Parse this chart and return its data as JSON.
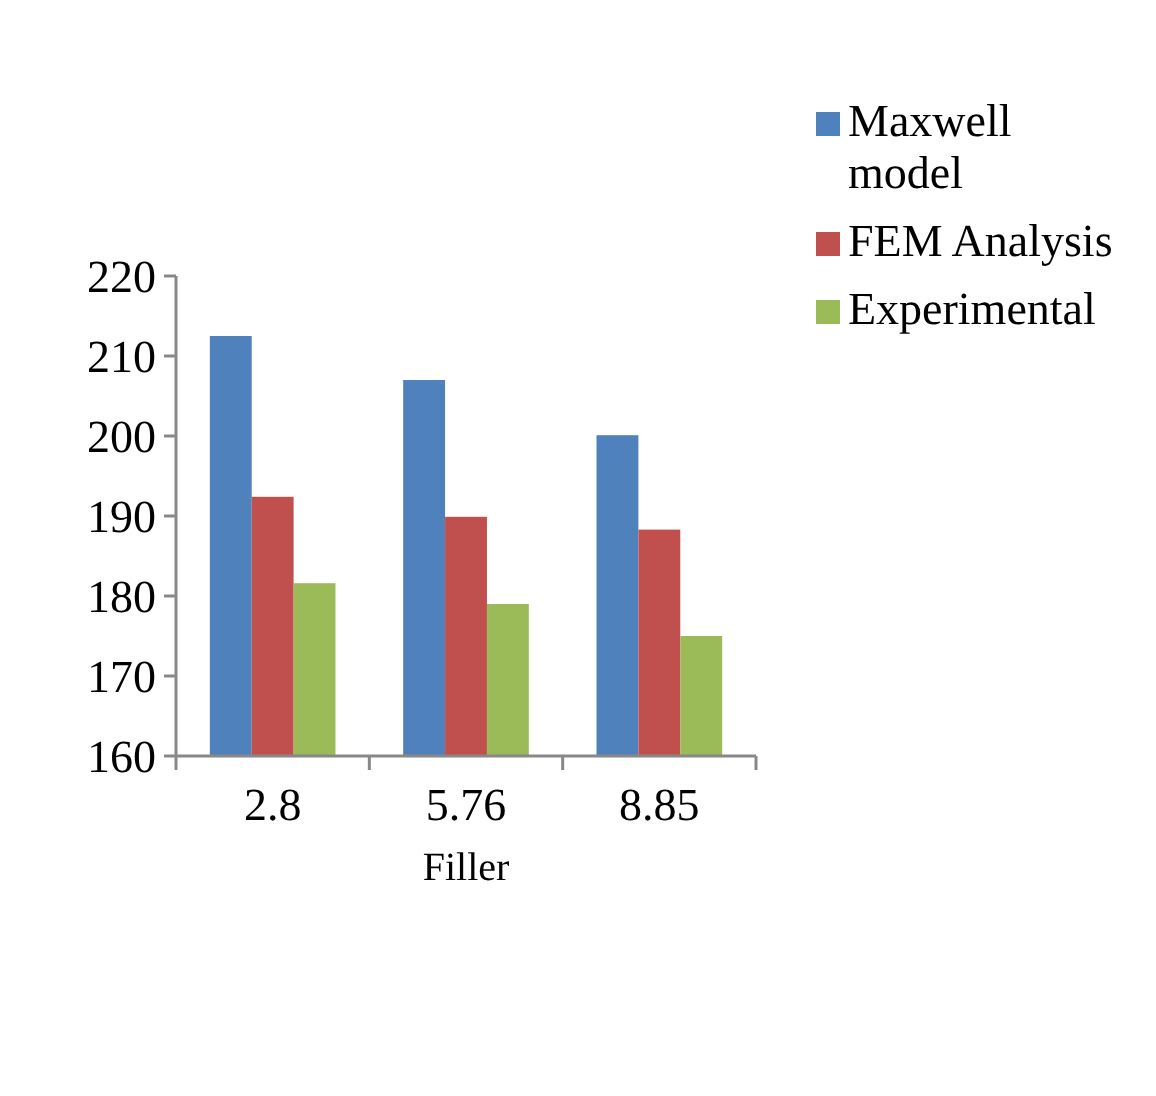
{
  "chart_data": {
    "type": "bar",
    "xlabel": "Filler",
    "categories": [
      "2.8",
      "5.76",
      "8.85"
    ],
    "series": [
      {
        "name": "Maxwell model",
        "color": "#4f81bd",
        "values": [
          212.5,
          207,
          200.1
        ]
      },
      {
        "name": "FEM Analysis",
        "color": "#c0504d",
        "values": [
          192.4,
          189.9,
          188.3
        ]
      },
      {
        "name": "Experimental",
        "color": "#9bbb59",
        "values": [
          181.6,
          179,
          175
        ]
      }
    ],
    "ylim": [
      160,
      220
    ],
    "yticks": [
      160,
      170,
      180,
      190,
      200,
      210,
      220
    ],
    "legend": "top right"
  }
}
